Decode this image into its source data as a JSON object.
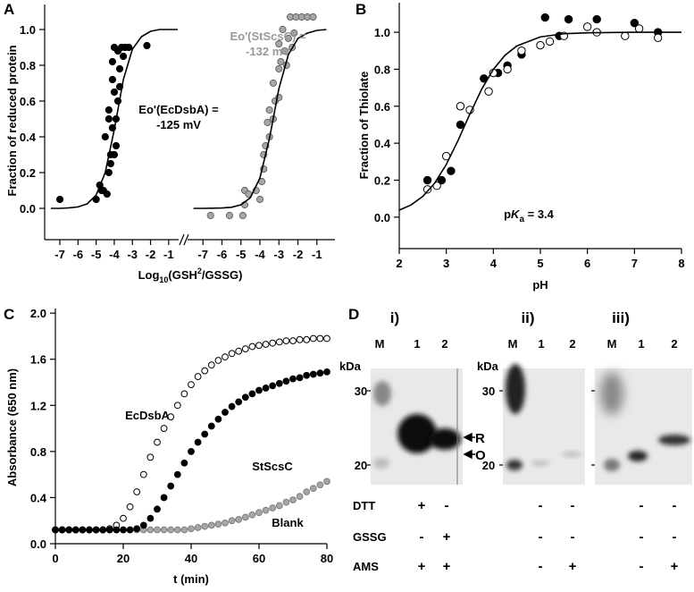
{
  "chart_data": [
    {
      "type": "scatter",
      "label": "A",
      "ylabel": "Fraction of reduced protein",
      "xlabel": [
        "Log",
        "10",
        "(GSH",
        "2",
        "/GSSG)"
      ],
      "ylim": [
        -0.175,
        1.14
      ],
      "yticks": [
        {
          "value": 0,
          "label": "0.0"
        },
        {
          "value": 0.2,
          "label": "0.2"
        },
        {
          "value": 0.4,
          "label": "0.4"
        },
        {
          "value": 0.6,
          "label": "0.6"
        },
        {
          "value": 0.8,
          "label": "0.8"
        },
        {
          "value": 1,
          "label": "1.0"
        }
      ],
      "panels": [
        {
          "xlim": [
            -7.84,
            -0.45
          ],
          "xticks": [
            -7,
            -6,
            -5,
            -4,
            -3,
            -2,
            -1
          ],
          "annotation": [
            "Eo'(EcDsbA) =",
            "-125 mV"
          ],
          "annotation_color": "#000000",
          "series": [
            {
              "color": "#000000",
              "edge": "#000000",
              "x": [
                -7,
                -5,
                -4.7,
                -4.8,
                -4.4,
                -4.3,
                -4.2,
                -4.2,
                -4.0,
                -3.9,
                -4.5,
                -4.1,
                -3.9,
                -4.3,
                -3.8,
                -4.0,
                -3.7,
                -4.1,
                -3.7,
                -4.1,
                -3.5,
                -3.8,
                -4.0,
                -3.6,
                -3.4,
                -3.2,
                -2.2,
                -4.3,
                -4.6
              ],
              "values": [
                0.05,
                0.05,
                0.1,
                0.13,
                0.08,
                0.2,
                0.25,
                0.3,
                0.3,
                0.35,
                0.4,
                0.45,
                0.5,
                0.55,
                0.6,
                0.65,
                0.68,
                0.72,
                0.78,
                0.82,
                0.85,
                0.88,
                0.9,
                0.9,
                0.9,
                0.9,
                0.91,
                0.5,
                0.1
              ],
              "fit": {
                "x": [
                  -7.5,
                  -7,
                  -6.5,
                  -6,
                  -5.5,
                  -5,
                  -4.5,
                  -4,
                  -3.5,
                  -3,
                  -2.5,
                  -2,
                  -1.5,
                  -1,
                  -0.5
                ],
                "values": [
                  0,
                  0,
                  0.003,
                  0.008,
                  0.025,
                  0.074,
                  0.2,
                  0.44,
                  0.72,
                  0.89,
                  0.96,
                  0.99,
                  1,
                  1,
                  1
                ]
              }
            }
          ]
        },
        {
          "xlim": [
            -7.81,
            -0.05
          ],
          "xticks": [
            -7,
            -6,
            -5,
            -4,
            -3,
            -2,
            -1
          ],
          "annotation": [
            "Eo'(StScsC) =",
            "-132 mV"
          ],
          "annotation_color": "#999999",
          "series": [
            {
              "color": "#a6a6a6",
              "edge": "#666666",
              "x": [
                -6.6,
                -5.6,
                -4.9,
                -4.8,
                -4.8,
                -4.6,
                -4.2,
                -4.0,
                -3.9,
                -3.8,
                -3.8,
                -3.7,
                -3.5,
                -3.6,
                -3.3,
                -3.5,
                -3.2,
                -3.0,
                -3.3,
                -3.0,
                -2.9,
                -2.6,
                -2.7,
                -3.0,
                -2.5,
                -2.8,
                -2.4,
                -2.1,
                -1.8,
                -1.5,
                -1.2,
                -2.2,
                -2.3
              ],
              "values": [
                -0.04,
                -0.04,
                -0.04,
                0.02,
                0.1,
                0.08,
                0.1,
                0.05,
                0.15,
                0.22,
                0.3,
                0.35,
                0.4,
                0.48,
                0.5,
                0.55,
                0.6,
                0.62,
                0.7,
                0.78,
                0.82,
                0.8,
                0.88,
                0.92,
                0.95,
                1.0,
                1.07,
                1.07,
                1.07,
                1.07,
                1.07,
                0.98,
                0.9
              ],
              "fit": {
                "x": [
                  -7.5,
                  -7,
                  -6.5,
                  -6,
                  -5.5,
                  -5,
                  -4.5,
                  -4,
                  -3.5,
                  -3,
                  -2.5,
                  -2,
                  -1.5,
                  -1,
                  -0.5
                ],
                "values": [
                  0,
                  0,
                  0.001,
                  0.002,
                  0.006,
                  0.02,
                  0.06,
                  0.17,
                  0.39,
                  0.67,
                  0.86,
                  0.95,
                  0.98,
                  0.995,
                  1
                ]
              }
            }
          ]
        }
      ]
    },
    {
      "type": "scatter",
      "label": "B",
      "ylabel": "Fraction of Thiolate",
      "xlabel": "pH",
      "xlim": [
        2,
        8
      ],
      "xticks": [
        2,
        3,
        4,
        5,
        6,
        7,
        8
      ],
      "ylim": [
        -0.17,
        1.16
      ],
      "yticks": [
        {
          "value": 0,
          "label": "0.0"
        },
        {
          "value": 0.2,
          "label": "0.2"
        },
        {
          "value": 0.4,
          "label": "0.4"
        },
        {
          "value": 0.6,
          "label": "0.6"
        },
        {
          "value": 0.8,
          "label": "0.8"
        },
        {
          "value": 1,
          "label": "1.0"
        }
      ],
      "annotation": [
        "p",
        "K",
        "a",
        " = 3.4"
      ],
      "series": [
        {
          "color": "#000000",
          "edge": "#000000",
          "x": [
            2.6,
            2.9,
            3.1,
            3.3,
            3.3,
            3.8,
            4.1,
            4.3,
            4.6,
            5.1,
            5.4,
            5.6,
            6.2,
            7.0,
            7.5
          ],
          "values": [
            0.2,
            0.2,
            0.25,
            0.5,
            0.6,
            0.75,
            0.78,
            0.82,
            0.88,
            1.08,
            0.98,
            1.07,
            1.07,
            1.05,
            1.0
          ]
        },
        {
          "color": "#ffffff",
          "edge": "#000000",
          "x": [
            2.6,
            2.8,
            3.0,
            3.3,
            3.5,
            3.9,
            4.0,
            4.3,
            4.6,
            5.0,
            5.2,
            5.5,
            6.0,
            6.2,
            6.8,
            7.1,
            7.5
          ],
          "values": [
            0.15,
            0.17,
            0.33,
            0.6,
            0.58,
            0.68,
            0.78,
            0.8,
            0.9,
            0.93,
            0.95,
            0.98,
            1.03,
            1.0,
            0.98,
            1.02,
            0.97
          ]
        }
      ],
      "fit": {
        "x": [
          2,
          2.25,
          2.5,
          2.75,
          3,
          3.25,
          3.5,
          3.75,
          4,
          4.25,
          4.5,
          5,
          5.5,
          6,
          7,
          8
        ],
        "values": [
          0.038,
          0.066,
          0.112,
          0.183,
          0.285,
          0.415,
          0.557,
          0.691,
          0.799,
          0.876,
          0.926,
          0.975,
          0.992,
          0.997,
          1,
          1
        ]
      }
    },
    {
      "type": "scatter",
      "label": "C",
      "ylabel": "Absorbance (650 nm)",
      "xlabel": "t (min)",
      "xlim": [
        0,
        80
      ],
      "xticks": [
        0,
        20,
        40,
        60,
        80
      ],
      "ylim": [
        0,
        2.04
      ],
      "yticks": [
        {
          "value": 0,
          "label": "0.0"
        },
        {
          "value": 0.4,
          "label": "0.4"
        },
        {
          "value": 0.8,
          "label": "0.8"
        },
        {
          "value": 1.2,
          "label": "1.2"
        },
        {
          "value": 1.6,
          "label": "1.6"
        },
        {
          "value": 2,
          "label": "2.0"
        }
      ],
      "x": [
        0,
        2,
        4,
        6,
        8,
        10,
        12,
        14,
        16,
        18,
        20,
        22,
        24,
        26,
        28,
        30,
        32,
        34,
        36,
        38,
        40,
        42,
        44,
        46,
        48,
        50,
        52,
        54,
        56,
        58,
        60,
        62,
        64,
        66,
        68,
        70,
        72,
        74,
        76,
        78,
        80
      ],
      "series": [
        {
          "name": "Blank",
          "color": "#a6a6a6",
          "edge": "#7f7f7f",
          "values": [
            0.12,
            0.12,
            0.12,
            0.12,
            0.12,
            0.12,
            0.12,
            0.12,
            0.12,
            0.12,
            0.12,
            0.12,
            0.12,
            0.12,
            0.12,
            0.12,
            0.12,
            0.12,
            0.12,
            0.12,
            0.13,
            0.14,
            0.15,
            0.16,
            0.17,
            0.18,
            0.2,
            0.21,
            0.23,
            0.25,
            0.27,
            0.29,
            0.31,
            0.33,
            0.36,
            0.38,
            0.41,
            0.45,
            0.48,
            0.51,
            0.54
          ]
        },
        {
          "name": "EcDsbA",
          "color": "#ffffff",
          "edge": "#000000",
          "values": [
            0.12,
            0.12,
            0.12,
            0.12,
            0.12,
            0.12,
            0.12,
            0.12,
            0.13,
            0.16,
            0.22,
            0.32,
            0.45,
            0.6,
            0.75,
            0.88,
            1.0,
            1.1,
            1.2,
            1.3,
            1.38,
            1.45,
            1.5,
            1.55,
            1.59,
            1.62,
            1.65,
            1.67,
            1.69,
            1.71,
            1.72,
            1.73,
            1.74,
            1.75,
            1.76,
            1.76,
            1.77,
            1.77,
            1.78,
            1.78,
            1.78
          ]
        },
        {
          "name": "StScsC",
          "color": "#000000",
          "edge": "#000000",
          "values": [
            0.12,
            0.12,
            0.12,
            0.12,
            0.12,
            0.12,
            0.12,
            0.12,
            0.12,
            0.12,
            0.12,
            0.12,
            0.13,
            0.16,
            0.22,
            0.3,
            0.4,
            0.5,
            0.6,
            0.7,
            0.8,
            0.88,
            0.95,
            1.02,
            1.08,
            1.14,
            1.19,
            1.23,
            1.27,
            1.3,
            1.33,
            1.35,
            1.37,
            1.39,
            1.41,
            1.43,
            1.44,
            1.46,
            1.47,
            1.48,
            1.49
          ]
        }
      ]
    }
  ],
  "gel": {
    "label": "D",
    "panels": [
      {
        "title": "i)",
        "lanes": [
          "M",
          "1",
          "2"
        ],
        "unit": "kDa",
        "markers": [
          30,
          20
        ],
        "bands": [
          "R",
          "O"
        ]
      },
      {
        "title": "ii)",
        "lanes": [
          "M",
          "1",
          "2"
        ],
        "unit": "kDa",
        "markers": [
          30,
          20
        ]
      },
      {
        "title": "iii)",
        "lanes": [
          "M",
          "1",
          "2"
        ]
      }
    ],
    "conditions": [
      {
        "name": "DTT",
        "signs": [
          "+",
          "-",
          "-",
          "-",
          "-",
          "-"
        ]
      },
      {
        "name": "GSSG",
        "signs": [
          "-",
          "+",
          "-",
          "-",
          "-",
          "-"
        ]
      },
      {
        "name": "AMS",
        "signs": [
          "+",
          "+",
          "-",
          "+",
          "-",
          "+"
        ]
      }
    ]
  }
}
